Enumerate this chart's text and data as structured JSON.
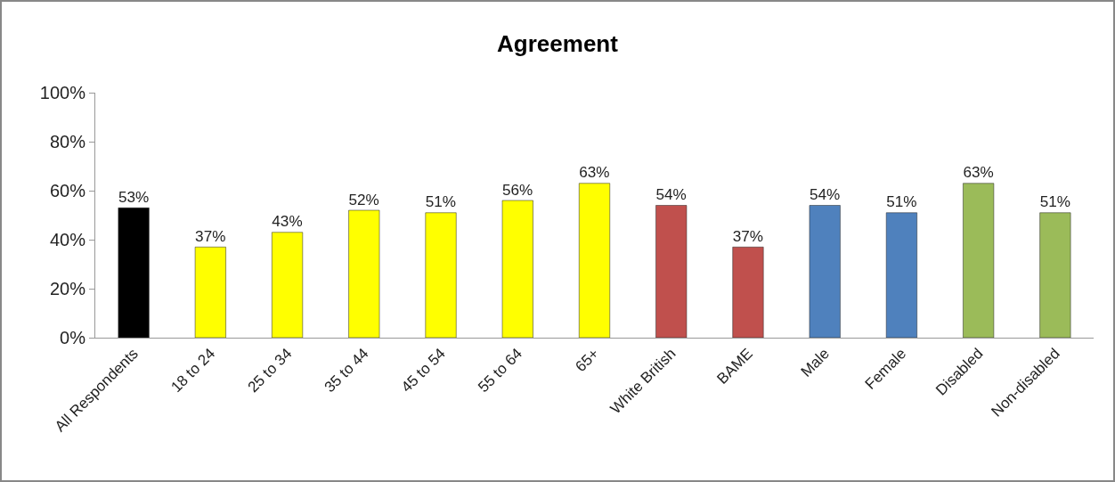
{
  "chart_data": {
    "type": "bar",
    "title": "Agreement",
    "categories": [
      "All Respondents",
      "18 to 24",
      "25 to 34",
      "35 to 44",
      "45 to 54",
      "55 to 64",
      "65+",
      "White British",
      "BAME",
      "Male",
      "Female",
      "Disabled",
      "Non-disabled"
    ],
    "values": [
      53,
      37,
      43,
      52,
      51,
      56,
      63,
      54,
      37,
      54,
      51,
      63,
      51
    ],
    "colors": [
      "#000000",
      "#ffff00",
      "#ffff00",
      "#ffff00",
      "#ffff00",
      "#ffff00",
      "#ffff00",
      "#c0504d",
      "#c0504d",
      "#4f81bd",
      "#4f81bd",
      "#9bbb59",
      "#9bbb59"
    ],
    "value_labels": [
      "53%",
      "37%",
      "43%",
      "52%",
      "51%",
      "56%",
      "63%",
      "54%",
      "37%",
      "54%",
      "51%",
      "63%",
      "51%"
    ],
    "ylim": [
      0,
      100
    ],
    "yticks": [
      {
        "value": 0,
        "label": "0%"
      },
      {
        "value": 20,
        "label": "20%"
      },
      {
        "value": 40,
        "label": "40%"
      },
      {
        "value": 60,
        "label": "60%"
      },
      {
        "value": 80,
        "label": "80%"
      },
      {
        "value": 100,
        "label": "100%"
      }
    ],
    "grid": false
  }
}
